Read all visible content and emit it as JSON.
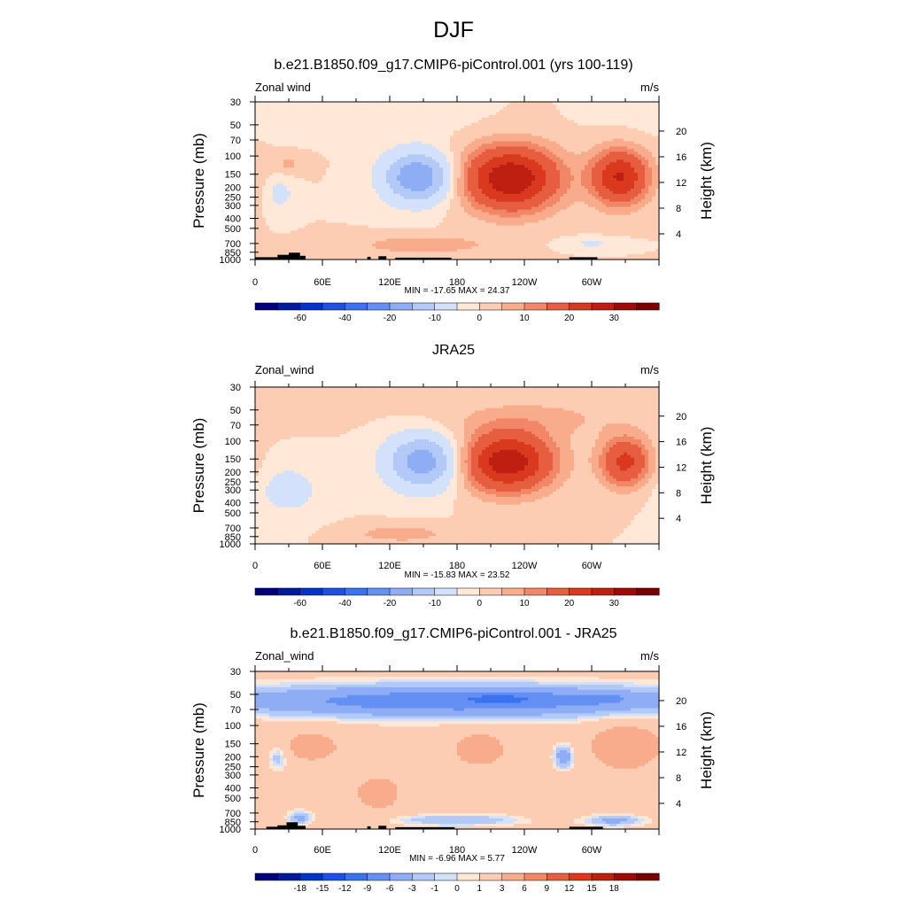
{
  "figure": {
    "title": "DJF"
  },
  "chart_data": [
    {
      "type": "heatmap",
      "title": "b.e21.B1850.f09_g17.CMIP6-piControl.001 (yrs 100-119)",
      "left_label": "Zonal wind",
      "right_label": "m/s",
      "ylabel": "Pressure (mb)",
      "ylabel_right": "Height (km)",
      "x_ticks": [
        "0",
        "60E",
        "120E",
        "180",
        "120W",
        "60W"
      ],
      "y_ticks": [
        "30",
        "50",
        "70",
        "100",
        "150",
        "200",
        "250",
        "300",
        "400",
        "500",
        "700",
        "850",
        "1000"
      ],
      "y_ticks_right": [
        "20",
        "16",
        "12",
        "8",
        "4"
      ],
      "stats": "MIN = -17.65  MAX =  24.37",
      "colorbar_labels": [
        "-60",
        "-40",
        "-20",
        "-10",
        "0",
        "10",
        "20",
        "30"
      ],
      "field": {
        "background": 2.5,
        "blobs": [
          {
            "lon": 145,
            "p": 160,
            "ax": 30,
            "ay": 0.55,
            "amp": -17.6
          },
          {
            "lon": 22,
            "p": 230,
            "ax": 12,
            "ay": 0.35,
            "amp": -4
          },
          {
            "lon": 228,
            "p": 165,
            "ax": 42,
            "ay": 0.7,
            "amp": 22
          },
          {
            "lon": 325,
            "p": 160,
            "ax": 25,
            "ay": 0.6,
            "amp": 18
          },
          {
            "lon": 150,
            "p": 720,
            "ax": 55,
            "ay": 0.2,
            "amp": 5
          },
          {
            "lon": 30,
            "p": 120,
            "ax": 15,
            "ay": 0.2,
            "amp": 3
          },
          {
            "lon": 300,
            "p": 700,
            "ax": 25,
            "ay": 0.12,
            "amp": -3
          },
          {
            "lon": 80,
            "p": 45,
            "ax": 100,
            "ay": 0.35,
            "amp": -2
          }
        ]
      },
      "topography": [
        [
          0,
          20,
          950
        ],
        [
          20,
          30,
          900
        ],
        [
          30,
          40,
          860
        ],
        [
          40,
          45,
          920
        ],
        [
          100,
          103,
          940
        ],
        [
          110,
          117,
          930
        ],
        [
          125,
          175,
          960
        ],
        [
          280,
          305,
          950
        ]
      ]
    },
    {
      "type": "heatmap",
      "title": "JRA25",
      "left_label": "Zonal_wind",
      "right_label": "m/s",
      "ylabel": "Pressure (mb)",
      "ylabel_right": "Height (km)",
      "x_ticks": [
        "0",
        "60E",
        "120E",
        "180",
        "120W",
        "60W"
      ],
      "y_ticks": [
        "30",
        "50",
        "70",
        "100",
        "150",
        "200",
        "250",
        "300",
        "400",
        "500",
        "700",
        "850",
        "1000"
      ],
      "y_ticks_right": [
        "20",
        "16",
        "12",
        "8",
        "4"
      ],
      "stats": "MIN = -15.83  MAX =  23.52",
      "colorbar_labels": [
        "-60",
        "-40",
        "-20",
        "-10",
        "0",
        "10",
        "20",
        "30"
      ],
      "field": {
        "background": 2.5,
        "blobs": [
          {
            "lon": 150,
            "p": 160,
            "ax": 32,
            "ay": 0.6,
            "amp": -15.8
          },
          {
            "lon": 30,
            "p": 300,
            "ax": 30,
            "ay": 0.6,
            "amp": -4
          },
          {
            "lon": 225,
            "p": 160,
            "ax": 40,
            "ay": 0.65,
            "amp": 21
          },
          {
            "lon": 330,
            "p": 160,
            "ax": 22,
            "ay": 0.55,
            "amp": 14
          },
          {
            "lon": 130,
            "p": 800,
            "ax": 45,
            "ay": 0.2,
            "amp": 4
          },
          {
            "lon": 250,
            "p": 60,
            "ax": 90,
            "ay": 0.45,
            "amp": 3
          }
        ]
      },
      "topography": []
    },
    {
      "type": "heatmap",
      "title": "b.e21.B1850.f09_g17.CMIP6-piControl.001 - JRA25",
      "left_label": "Zonal_wind",
      "right_label": "m/s",
      "ylabel": "Pressure (mb)",
      "ylabel_right": "Height (km)",
      "x_ticks": [
        "0",
        "60E",
        "120E",
        "180",
        "120W",
        "60W"
      ],
      "y_ticks": [
        "30",
        "50",
        "70",
        "100",
        "150",
        "200",
        "250",
        "300",
        "400",
        "500",
        "700",
        "850",
        "1000"
      ],
      "y_ticks_right": [
        "20",
        "16",
        "12",
        "8",
        "4"
      ],
      "stats": "MIN = -6.96  MAX =  5.77",
      "colorbar_labels": [
        "-18",
        "-15",
        "-12",
        "-9",
        "-6",
        "-3",
        "-1",
        "0",
        "1",
        "3",
        "6",
        "9",
        "12",
        "15",
        "18"
      ],
      "field": {
        "background": 1.5,
        "blobs": [
          {
            "lon": 180,
            "p": 58,
            "ax": 220,
            "ay": 0.35,
            "amp": -6
          },
          {
            "lon": 220,
            "p": 55,
            "ax": 40,
            "ay": 0.12,
            "amp": -3
          },
          {
            "lon": 310,
            "p": 55,
            "ax": 20,
            "ay": 0.1,
            "amp": -2
          },
          {
            "lon": 50,
            "p": 160,
            "ax": 30,
            "ay": 0.4,
            "amp": 2.5
          },
          {
            "lon": 200,
            "p": 170,
            "ax": 25,
            "ay": 0.4,
            "amp": 3
          },
          {
            "lon": 330,
            "p": 160,
            "ax": 30,
            "ay": 0.5,
            "amp": 4
          },
          {
            "lon": 110,
            "p": 450,
            "ax": 25,
            "ay": 0.45,
            "amp": 2.5
          },
          {
            "lon": 20,
            "p": 200,
            "ax": 10,
            "ay": 0.3,
            "amp": -2.5
          },
          {
            "lon": 275,
            "p": 200,
            "ax": 8,
            "ay": 0.25,
            "amp": -4
          },
          {
            "lon": 180,
            "p": 820,
            "ax": 60,
            "ay": 0.12,
            "amp": -2.5
          },
          {
            "lon": 320,
            "p": 830,
            "ax": 25,
            "ay": 0.12,
            "amp": -3
          },
          {
            "lon": 40,
            "p": 780,
            "ax": 10,
            "ay": 0.15,
            "amp": -3
          },
          {
            "lon": 250,
            "p": 500,
            "ax": 15,
            "ay": 0.4,
            "amp": 1
          }
        ]
      },
      "topography": [
        [
          10,
          20,
          950
        ],
        [
          20,
          28,
          920
        ],
        [
          28,
          38,
          860
        ],
        [
          38,
          45,
          930
        ],
        [
          100,
          103,
          940
        ],
        [
          110,
          117,
          930
        ],
        [
          125,
          178,
          960
        ],
        [
          280,
          310,
          950
        ]
      ]
    }
  ]
}
